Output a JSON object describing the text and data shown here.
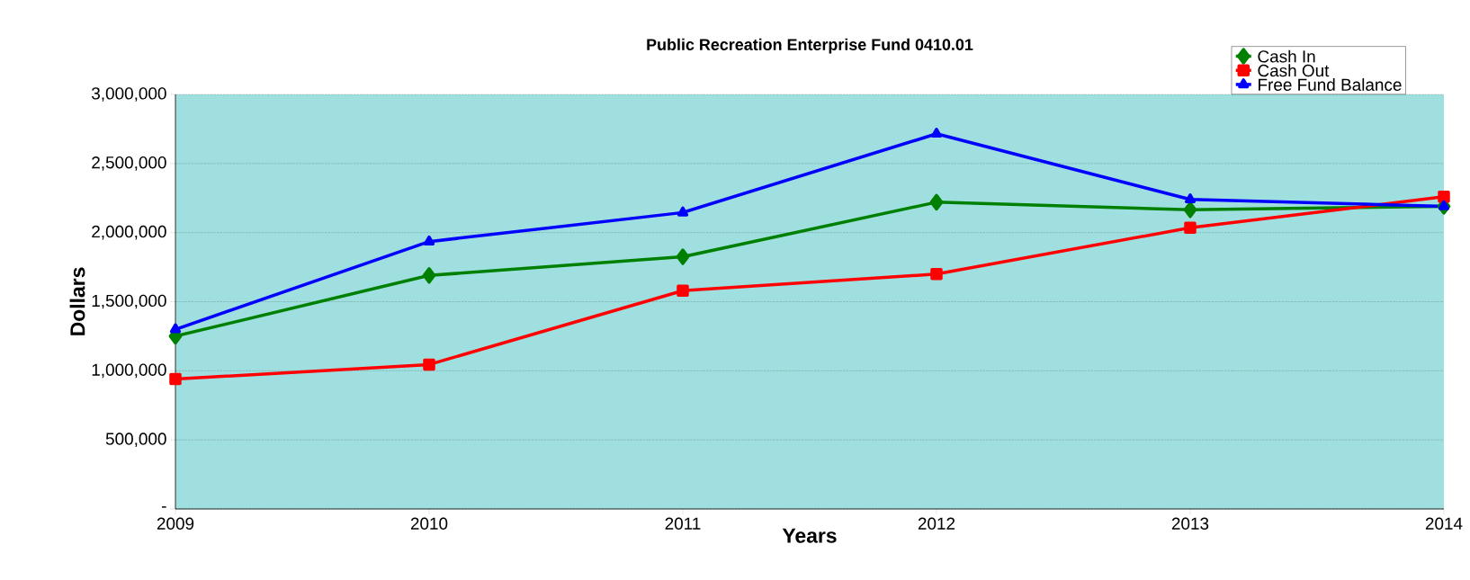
{
  "chart_data": {
    "type": "line",
    "title": "Public Recreation Enterprise Fund 0410.01",
    "xlabel": "Years",
    "ylabel": "Dollars",
    "x": [
      2009,
      2010,
      2011,
      2012,
      2013,
      2014
    ],
    "series": [
      {
        "name": "Cash In",
        "color": "#008000",
        "marker": "diamond",
        "values": [
          1250000,
          1690000,
          1825000,
          2220000,
          2165000,
          2190000
        ]
      },
      {
        "name": "Cash Out",
        "color": "#ff0000",
        "marker": "square",
        "values": [
          940000,
          1045000,
          1580000,
          1700000,
          2035000,
          2260000
        ]
      },
      {
        "name": "Free Fund Balance",
        "color": "#0000ff",
        "marker": "triangle",
        "values": [
          1300000,
          1935000,
          2145000,
          2715000,
          2240000,
          2190000
        ]
      }
    ],
    "xlim": [
      2009,
      2014
    ],
    "xticks": [
      2009,
      2010,
      2011,
      2012,
      2013,
      2014
    ],
    "ylim": [
      0,
      3000000
    ],
    "yticks": [
      {
        "value": 0,
        "label": "-"
      },
      {
        "value": 500000,
        "label": "500,000"
      },
      {
        "value": 1000000,
        "label": "1,000,000"
      },
      {
        "value": 1500000,
        "label": "1,500,000"
      },
      {
        "value": 2000000,
        "label": "2,000,000"
      },
      {
        "value": 2500000,
        "label": "2,500,000"
      },
      {
        "value": 3000000,
        "label": "3,000,000"
      }
    ],
    "grid": "y",
    "legend": "top right",
    "line_style": "solid"
  }
}
